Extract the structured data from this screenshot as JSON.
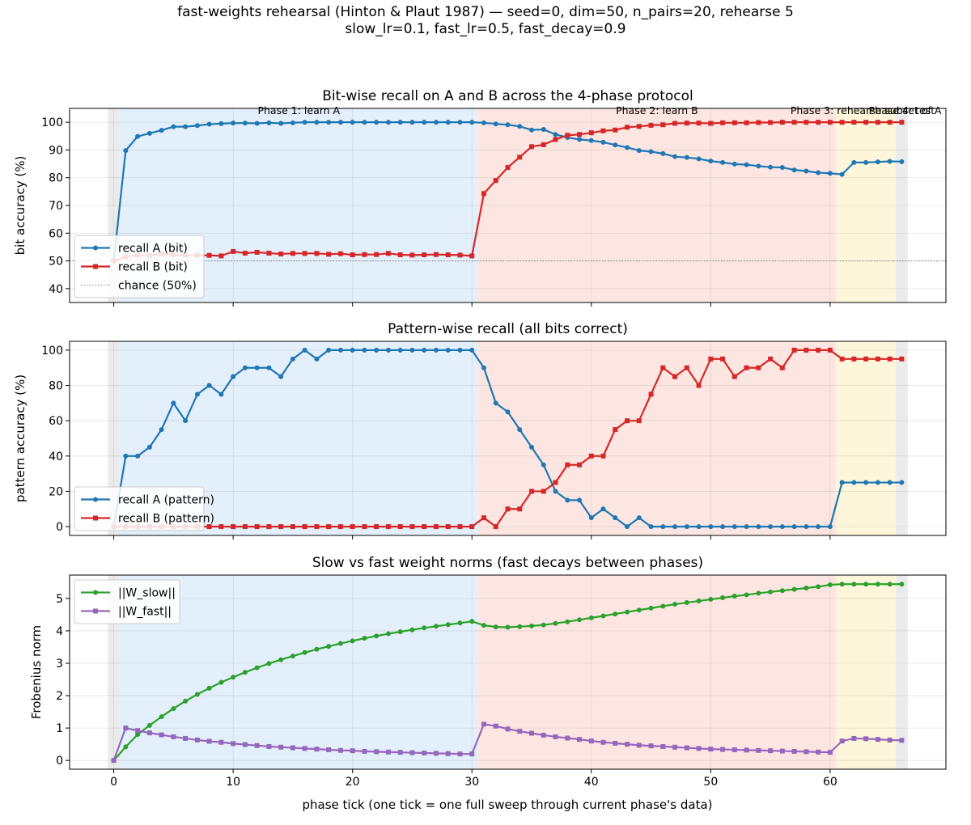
{
  "figure": {
    "title_line1": "fast-weights rehearsal (Hinton & Plaut 1987)  —  seed=0, dim=50, n_pairs=20, rehearse 5",
    "title_line2": "slow_lr=0.1, fast_lr=0.5, fast_decay=0.9",
    "xlabel": "phase tick (one tick = one full sweep through current phase's data)",
    "x_ticks": [
      0,
      10,
      20,
      30,
      40,
      50,
      60
    ],
    "xlim": [
      -3.7,
      69.7
    ]
  },
  "colors": {
    "recall_A": "#1f77b4",
    "recall_B": "#d62728",
    "w_slow": "#2ca02c",
    "w_fast": "#9467bd",
    "chance": "#808080",
    "phase_init": "#ebebeb",
    "phase_learnA": "#e3effb",
    "phase_learnB": "#fde6e1",
    "phase_rehearse": "#fef6da",
    "phase_test": "#ebebeb"
  },
  "phases": [
    {
      "name": "",
      "x0": -0.5,
      "x1": 0.5,
      "color": "#ebebeb"
    },
    {
      "name": "Phase 1: learn A",
      "x0": 0.5,
      "x1": 30.5,
      "color": "#e3effb"
    },
    {
      "name": "Phase 2: learn B",
      "x0": 30.5,
      "x1": 60.5,
      "color": "#fde6e1"
    },
    {
      "name": "Phase 3: rehearse subset of A",
      "x0": 60.5,
      "x1": 65.5,
      "color": "#fef6da"
    },
    {
      "name": "Phase 4: test",
      "x0": 65.5,
      "x1": 66.5,
      "color": "#ebebeb"
    }
  ],
  "chart_data": [
    {
      "type": "line",
      "title": "Bit-wise recall on A and B across the 4-phase protocol",
      "xlabel": "",
      "ylabel": "bit accuracy (%)",
      "ylim": [
        35,
        105
      ],
      "y_ticks": [
        40,
        50,
        60,
        70,
        80,
        90,
        100
      ],
      "grid": true,
      "legend_position": "lower-left",
      "hline": {
        "name": "chance (50%)",
        "y": 50
      },
      "series": [
        {
          "name": "recall A (bit)",
          "marker": "circle",
          "color": "#1f77b4",
          "x": [
            0,
            1,
            2,
            3,
            4,
            5,
            6,
            7,
            8,
            9,
            10,
            11,
            12,
            13,
            14,
            15,
            16,
            17,
            18,
            19,
            20,
            21,
            22,
            23,
            24,
            25,
            26,
            27,
            28,
            29,
            30,
            31,
            32,
            33,
            34,
            35,
            36,
            37,
            38,
            39,
            40,
            41,
            42,
            43,
            44,
            45,
            46,
            47,
            48,
            49,
            50,
            51,
            52,
            53,
            54,
            55,
            56,
            57,
            58,
            59,
            60,
            61,
            62,
            63,
            64,
            65,
            66
          ],
          "values": [
            50,
            89.8,
            94.9,
            96,
            97.1,
            98.4,
            98.4,
            98.8,
            99.3,
            99.5,
            99.7,
            99.7,
            99.6,
            99.8,
            99.6,
            99.8,
            100,
            100,
            100,
            100,
            100,
            100,
            100,
            100,
            100,
            100,
            100,
            100,
            100,
            100,
            100,
            99.8,
            99.4,
            99.1,
            98.5,
            97.2,
            97.4,
            95.6,
            94.5,
            93.8,
            93.4,
            92.8,
            91.8,
            90.9,
            89.8,
            89.4,
            88.7,
            87.6,
            87.3,
            86.8,
            86,
            85.5,
            84.9,
            84.7,
            84.2,
            83.8,
            83.7,
            82.8,
            82.4,
            81.8,
            81.6,
            81.2,
            85.5,
            85.5,
            85.7,
            85.9,
            85.8
          ]
        },
        {
          "name": "recall B (bit)",
          "marker": "square",
          "color": "#d62728",
          "x": [
            0,
            1,
            2,
            3,
            4,
            5,
            6,
            7,
            8,
            9,
            10,
            11,
            12,
            13,
            14,
            15,
            16,
            17,
            18,
            19,
            20,
            21,
            22,
            23,
            24,
            25,
            26,
            27,
            28,
            29,
            30,
            31,
            32,
            33,
            34,
            35,
            36,
            37,
            38,
            39,
            40,
            41,
            42,
            43,
            44,
            45,
            46,
            47,
            48,
            49,
            50,
            51,
            52,
            53,
            54,
            55,
            56,
            57,
            58,
            59,
            60,
            61,
            62,
            63,
            64,
            65,
            66
          ],
          "values": [
            50,
            51.5,
            52,
            52,
            52.5,
            52.2,
            52,
            52,
            52,
            51.8,
            53.4,
            52.8,
            53.1,
            52.8,
            52.5,
            52.7,
            52.7,
            52.7,
            52.4,
            52.6,
            52.2,
            52.3,
            52.3,
            52.7,
            52.2,
            52.1,
            52.2,
            52.3,
            52.2,
            52.1,
            51.8,
            74.3,
            79,
            83.7,
            87.4,
            91.2,
            91.9,
            93.8,
            95.3,
            95.6,
            96.2,
            96.9,
            97.2,
            98.2,
            98.5,
            98.9,
            99.1,
            99.6,
            99.7,
            99.7,
            99.6,
            99.8,
            99.8,
            99.8,
            99.9,
            99.9,
            100,
            100,
            100,
            100,
            100,
            100,
            100,
            100,
            100,
            100,
            100
          ]
        }
      ]
    },
    {
      "type": "line",
      "title": "Pattern-wise recall (all bits correct)",
      "xlabel": "",
      "ylabel": "pattern accuracy (%)",
      "ylim": [
        -5,
        105
      ],
      "y_ticks": [
        0,
        20,
        40,
        60,
        80,
        100
      ],
      "grid": true,
      "legend_position": "lower-left",
      "series": [
        {
          "name": "recall A (pattern)",
          "marker": "circle",
          "color": "#1f77b4",
          "x": [
            0,
            1,
            2,
            3,
            4,
            5,
            6,
            7,
            8,
            9,
            10,
            11,
            12,
            13,
            14,
            15,
            16,
            17,
            18,
            19,
            20,
            21,
            22,
            23,
            24,
            25,
            26,
            27,
            28,
            29,
            30,
            31,
            32,
            33,
            34,
            35,
            36,
            37,
            38,
            39,
            40,
            41,
            42,
            43,
            44,
            45,
            46,
            47,
            48,
            49,
            50,
            51,
            52,
            53,
            54,
            55,
            56,
            57,
            58,
            59,
            60,
            61,
            62,
            63,
            64,
            65,
            66
          ],
          "values": [
            0,
            40,
            40,
            45,
            55,
            70,
            60,
            75,
            80,
            75,
            85,
            90,
            90,
            90,
            85,
            95,
            100,
            95,
            100,
            100,
            100,
            100,
            100,
            100,
            100,
            100,
            100,
            100,
            100,
            100,
            100,
            90,
            70,
            65,
            55,
            45,
            35,
            20,
            15,
            15,
            5,
            10,
            5,
            0,
            5,
            0,
            0,
            0,
            0,
            0,
            0,
            0,
            0,
            0,
            0,
            0,
            0,
            0,
            0,
            0,
            0,
            25,
            25,
            25,
            25,
            25,
            25
          ]
        },
        {
          "name": "recall B (pattern)",
          "marker": "square",
          "color": "#d62728",
          "x": [
            0,
            1,
            2,
            3,
            4,
            5,
            6,
            7,
            8,
            9,
            10,
            11,
            12,
            13,
            14,
            15,
            16,
            17,
            18,
            19,
            20,
            21,
            22,
            23,
            24,
            25,
            26,
            27,
            28,
            29,
            30,
            31,
            32,
            33,
            34,
            35,
            36,
            37,
            38,
            39,
            40,
            41,
            42,
            43,
            44,
            45,
            46,
            47,
            48,
            49,
            50,
            51,
            52,
            53,
            54,
            55,
            56,
            57,
            58,
            59,
            60,
            61,
            62,
            63,
            64,
            65,
            66
          ],
          "values": [
            0,
            0,
            0,
            0,
            0,
            0,
            0,
            0,
            0,
            0,
            0,
            0,
            0,
            0,
            0,
            0,
            0,
            0,
            0,
            0,
            0,
            0,
            0,
            0,
            0,
            0,
            0,
            0,
            0,
            0,
            0,
            5,
            0,
            10,
            10,
            20,
            20,
            25,
            35,
            35,
            40,
            40,
            55,
            60,
            60,
            75,
            90,
            85,
            90,
            80,
            95,
            95,
            85,
            90,
            90,
            95,
            90,
            100,
            100,
            100,
            100,
            95,
            95,
            95,
            95,
            95,
            95
          ]
        }
      ]
    },
    {
      "type": "line",
      "title": "Slow vs fast weight norms (fast decays between phases)",
      "xlabel": "phase tick (one tick = one full sweep through current phase's data)",
      "ylabel": "Frobenius norm",
      "ylim": [
        -0.27,
        5.72
      ],
      "y_ticks": [
        0,
        1,
        2,
        3,
        4,
        5
      ],
      "grid": true,
      "legend_position": "upper-left",
      "series": [
        {
          "name": "||W_slow||",
          "marker": "circle",
          "color": "#2ca02c",
          "x": [
            0,
            1,
            2,
            3,
            4,
            5,
            6,
            7,
            8,
            9,
            10,
            11,
            12,
            13,
            14,
            15,
            16,
            17,
            18,
            19,
            20,
            21,
            22,
            23,
            24,
            25,
            26,
            27,
            28,
            29,
            30,
            31,
            32,
            33,
            34,
            35,
            36,
            37,
            38,
            39,
            40,
            41,
            42,
            43,
            44,
            45,
            46,
            47,
            48,
            49,
            50,
            51,
            52,
            53,
            54,
            55,
            56,
            57,
            58,
            59,
            60,
            61,
            62,
            63,
            64,
            65,
            66
          ],
          "values": [
            0,
            0.42,
            0.8,
            1.08,
            1.35,
            1.6,
            1.83,
            2.04,
            2.23,
            2.41,
            2.57,
            2.72,
            2.86,
            2.99,
            3.11,
            3.22,
            3.33,
            3.43,
            3.52,
            3.61,
            3.69,
            3.77,
            3.84,
            3.91,
            3.97,
            4.03,
            4.09,
            4.14,
            4.19,
            4.24,
            4.29,
            4.17,
            4.12,
            4.11,
            4.13,
            4.15,
            4.18,
            4.23,
            4.28,
            4.34,
            4.4,
            4.46,
            4.52,
            4.58,
            4.64,
            4.7,
            4.76,
            4.82,
            4.87,
            4.92,
            4.97,
            5.02,
            5.07,
            5.11,
            5.16,
            5.2,
            5.24,
            5.28,
            5.32,
            5.36,
            5.42,
            5.44,
            5.44,
            5.44,
            5.44,
            5.44,
            5.44
          ]
        },
        {
          "name": "||W_fast||",
          "marker": "square",
          "color": "#9467bd",
          "x": [
            0,
            1,
            2,
            3,
            4,
            5,
            6,
            7,
            8,
            9,
            10,
            11,
            12,
            13,
            14,
            15,
            16,
            17,
            18,
            19,
            20,
            21,
            22,
            23,
            24,
            25,
            26,
            27,
            28,
            29,
            30,
            31,
            32,
            33,
            34,
            35,
            36,
            37,
            38,
            39,
            40,
            41,
            42,
            43,
            44,
            45,
            46,
            47,
            48,
            49,
            50,
            51,
            52,
            53,
            54,
            55,
            56,
            57,
            58,
            59,
            60,
            61,
            62,
            63,
            64,
            65,
            66
          ],
          "values": [
            0,
            1,
            0.92,
            0.85,
            0.79,
            0.73,
            0.68,
            0.63,
            0.59,
            0.56,
            0.52,
            0.49,
            0.46,
            0.43,
            0.41,
            0.39,
            0.37,
            0.35,
            0.33,
            0.31,
            0.3,
            0.28,
            0.27,
            0.26,
            0.25,
            0.24,
            0.23,
            0.22,
            0.21,
            0.2,
            0.2,
            1.12,
            1.06,
            0.97,
            0.9,
            0.84,
            0.78,
            0.73,
            0.69,
            0.65,
            0.6,
            0.56,
            0.53,
            0.5,
            0.47,
            0.45,
            0.43,
            0.41,
            0.39,
            0.37,
            0.35,
            0.34,
            0.33,
            0.32,
            0.31,
            0.3,
            0.29,
            0.28,
            0.27,
            0.26,
            0.25,
            0.6,
            0.68,
            0.67,
            0.65,
            0.63,
            0.62
          ]
        }
      ]
    }
  ]
}
